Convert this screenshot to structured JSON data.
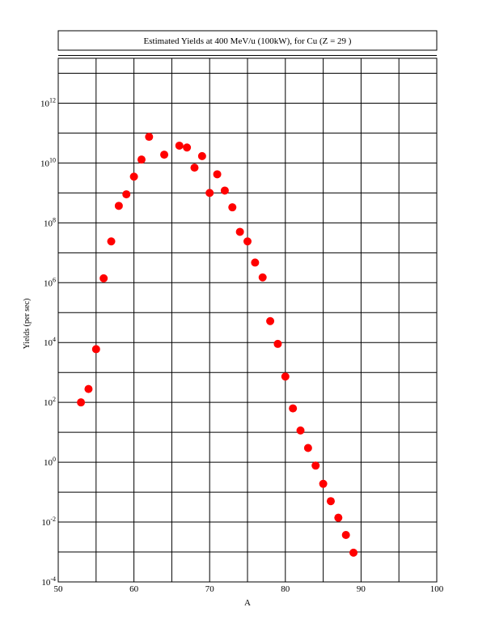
{
  "chart_data": {
    "type": "scatter",
    "title": "Estimated Yields at 400 MeV/u (100kW), for Cu (Z = 29 )",
    "xlabel": "A",
    "ylabel": "Yields (per sec)",
    "xlim": [
      50,
      100
    ],
    "ylim_log10": [
      -4,
      13.5
    ],
    "y_scale": "log",
    "grid": true,
    "x_ticks": [
      50,
      60,
      70,
      80,
      90,
      100
    ],
    "y_ticks": [
      {
        "base": "10",
        "exp": "12",
        "log10": 12
      },
      {
        "base": "10",
        "exp": "10",
        "log10": 10
      },
      {
        "base": "10",
        "exp": "8",
        "log10": 8
      },
      {
        "base": "10",
        "exp": "6",
        "log10": 6
      },
      {
        "base": "10",
        "exp": "4",
        "log10": 4
      },
      {
        "base": "10",
        "exp": "2",
        "log10": 2
      },
      {
        "base": "10",
        "exp": "0",
        "log10": 0
      },
      {
        "base": "10",
        "exp": "-2",
        "log10": -2
      },
      {
        "base": "10",
        "exp": "-4",
        "log10": -4
      }
    ],
    "marker_color": "#ff0000",
    "series": [
      {
        "x": [
          53,
          54,
          55,
          56,
          57,
          58,
          59,
          60,
          61,
          62,
          64,
          66,
          67,
          68,
          69,
          70,
          71,
          72,
          73,
          74,
          75,
          76,
          77,
          78,
          79,
          80,
          81,
          82,
          83,
          84,
          85,
          86,
          87,
          88,
          89
        ],
        "y": [
          100,
          280,
          6000,
          1400000.0,
          24000000.0,
          370000000.0,
          900000000.0,
          3500000000.0,
          13000000000.0,
          75000000000.0,
          19000000000.0,
          38000000000.0,
          33000000000.0,
          7000000000.0,
          17000000000.0,
          1000000000.0,
          4200000000.0,
          1200000000.0,
          330000000.0,
          50000000.0,
          24000000.0,
          4700000.0,
          1500000.0,
          52000.0,
          9000.0,
          730,
          63,
          11.5,
          3,
          0.77,
          0.19,
          0.05,
          0.014,
          0.0037,
          0.00095
        ]
      }
    ]
  }
}
